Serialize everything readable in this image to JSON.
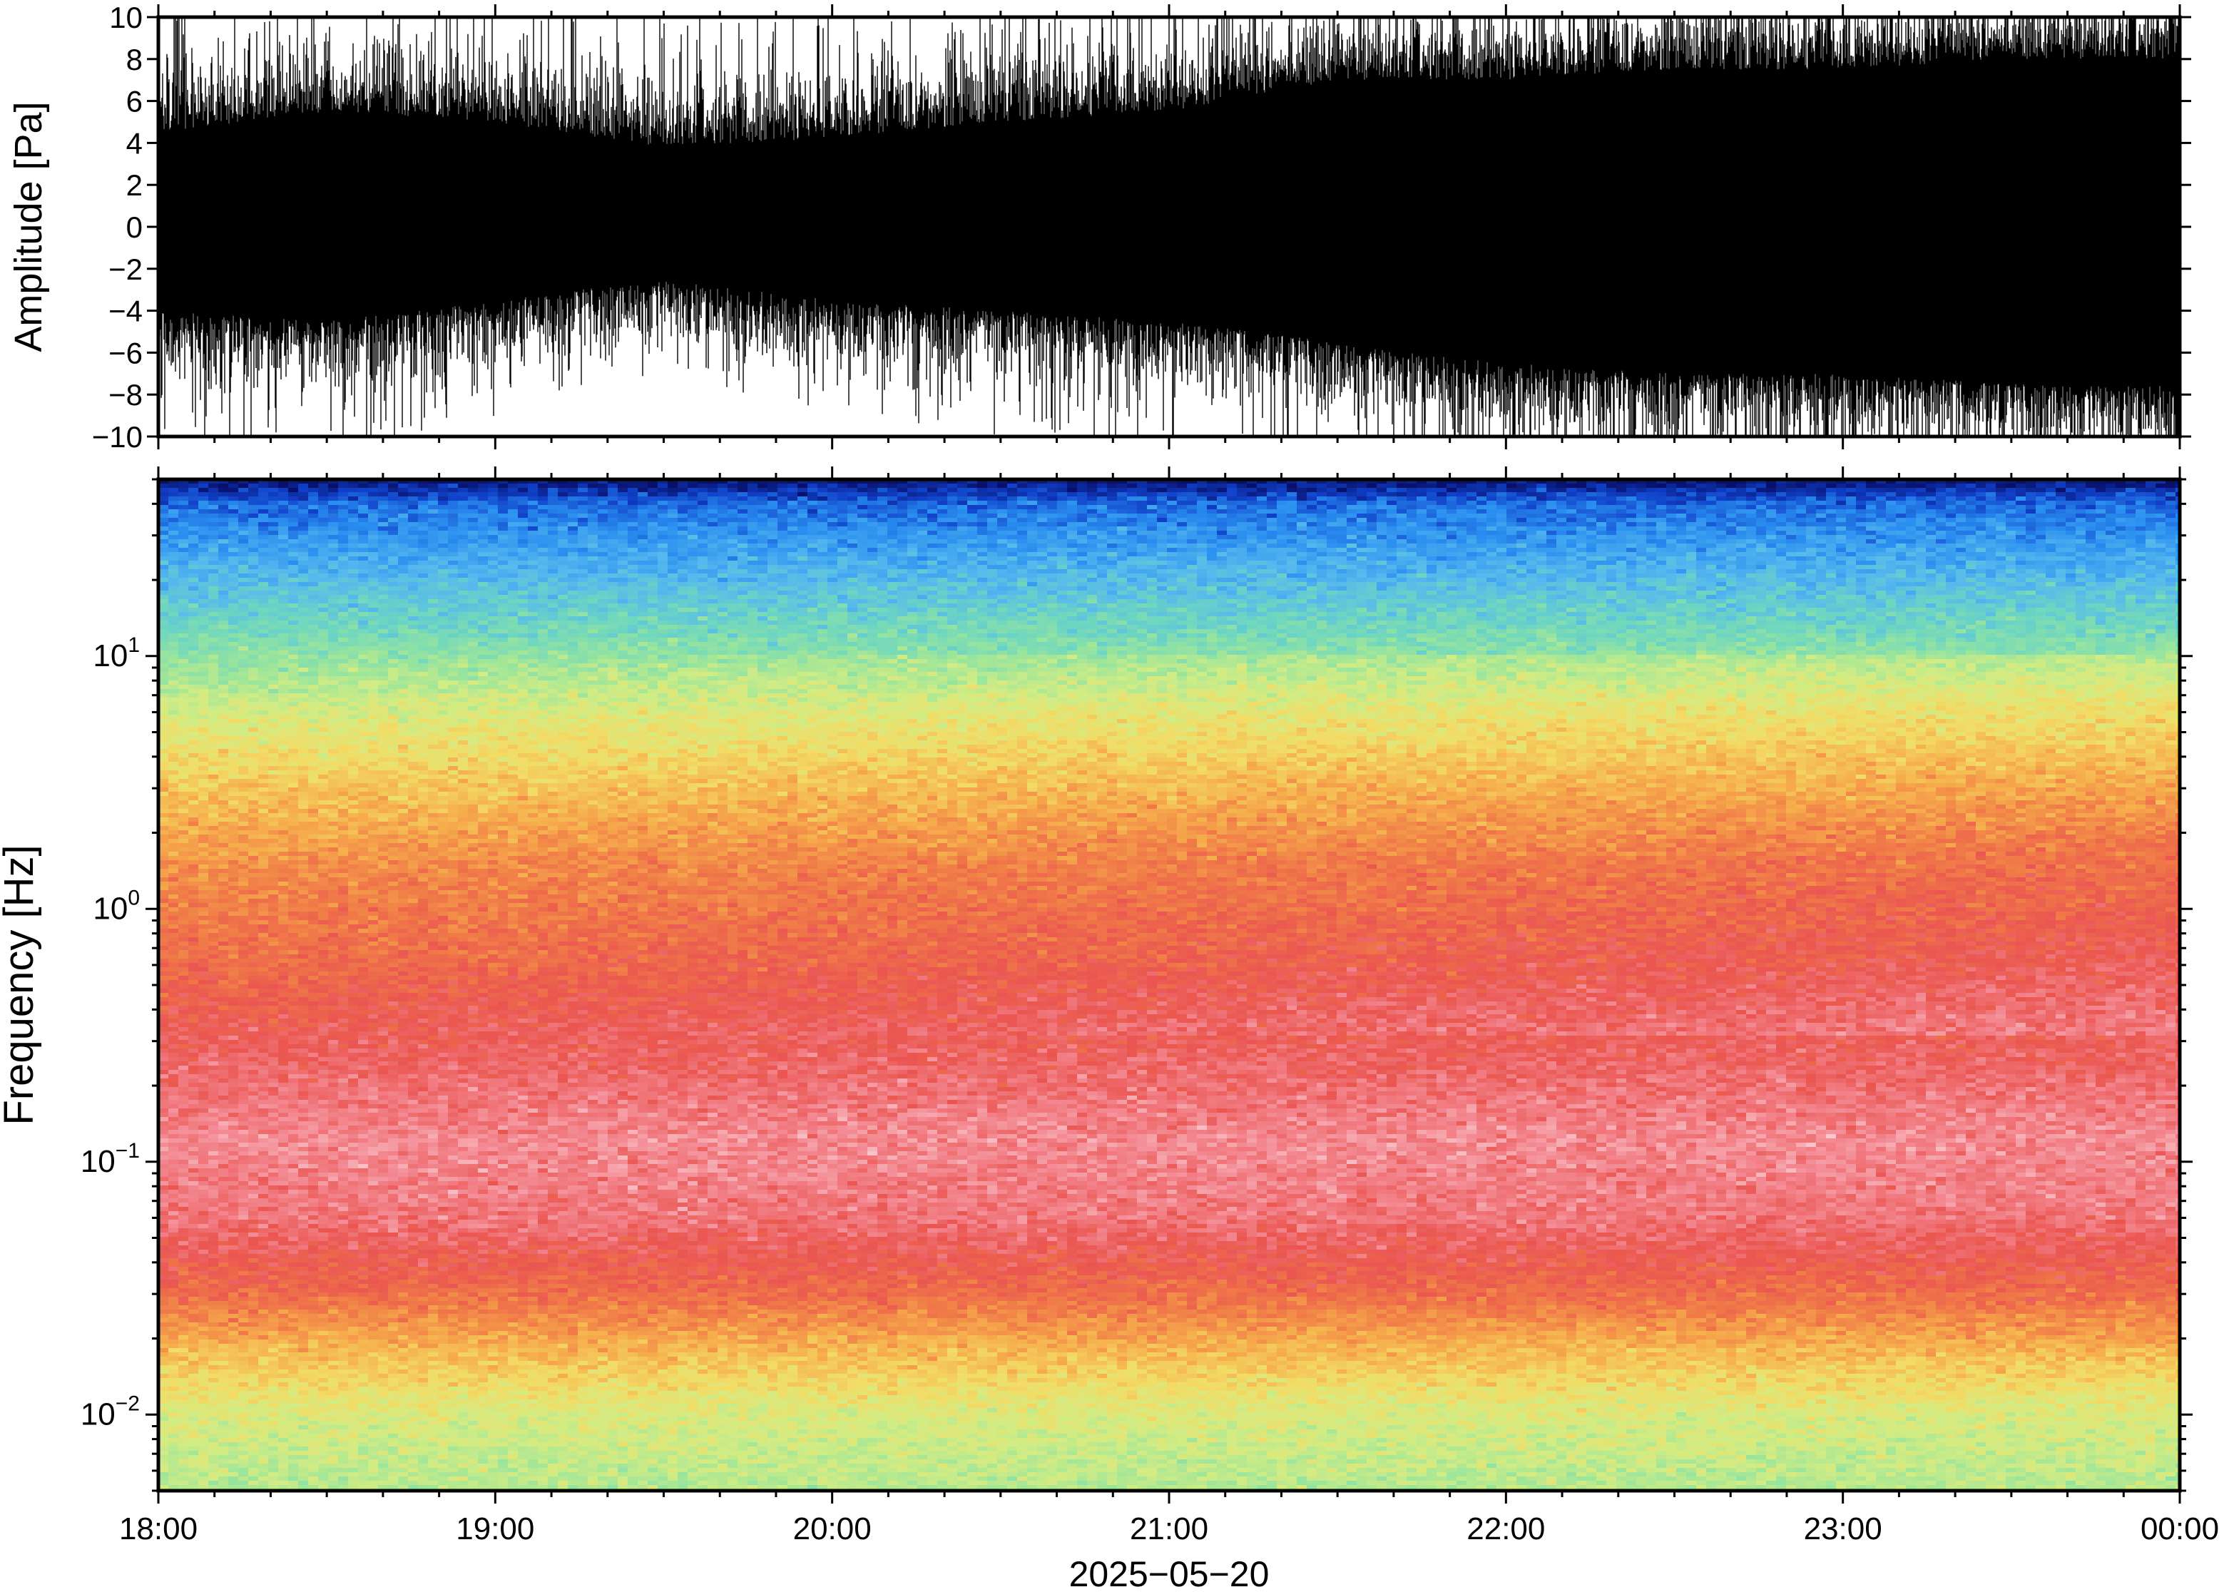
{
  "chart_data": [
    {
      "type": "line",
      "panel": "waveform",
      "ylabel": "Amplitude [Pa]",
      "ylim": [
        -10,
        10
      ],
      "yticks": [
        -10,
        -8,
        -6,
        -4,
        -2,
        0,
        2,
        4,
        6,
        8,
        10
      ],
      "ytick_labels": [
        "−10",
        "−8",
        "−6",
        "−4",
        "−2",
        "0",
        "2",
        "4",
        "6",
        "8",
        "10"
      ],
      "x": [
        "18:00",
        "18:30",
        "19:00",
        "19:30",
        "20:00",
        "20:30",
        "21:00",
        "21:30",
        "22:00",
        "22:30",
        "23:00",
        "23:30",
        "00:00"
      ],
      "envelope": {
        "upper": [
          4.5,
          5.5,
          5,
          3.8,
          4.2,
          5,
          5.5,
          7,
          7,
          7.5,
          7.5,
          8,
          8
        ],
        "lower": [
          -4,
          -4.5,
          -3.5,
          -2.5,
          -3.5,
          -4,
          -4.5,
          -5.5,
          -6.5,
          -7,
          -7,
          -7.5,
          -7.5
        ],
        "peak": [
          9.5,
          10,
          10,
          9,
          9,
          10,
          10,
          10,
          10,
          10,
          10,
          10,
          10
        ]
      },
      "grid": false
    },
    {
      "type": "heatmap",
      "panel": "spectrogram",
      "ylabel": "Frequency [Hz]",
      "yscale": "log",
      "ylim": [
        0.005,
        50
      ],
      "yticks": [
        0.01,
        0.1,
        1,
        10
      ],
      "ytick_labels": [
        {
          "base": "10",
          "exp": "−2"
        },
        {
          "base": "10",
          "exp": "−1"
        },
        {
          "base": "10",
          "exp": "0"
        },
        {
          "base": "10",
          "exp": "1"
        }
      ],
      "xlabel": "2025−05−20",
      "xlim": [
        "18:00",
        "00:00"
      ],
      "xtick_labels": [
        "18:00",
        "19:00",
        "20:00",
        "21:00",
        "22:00",
        "23:00",
        "00:00"
      ],
      "colormap": [
        "#08106b",
        "#1040c8",
        "#2a8ef0",
        "#55b8ee",
        "#6ed6c0",
        "#9ae59c",
        "#d2ec84",
        "#f2dc66",
        "#f6ad4c",
        "#f07b48",
        "#ea5550",
        "#f38790",
        "#fac8cd",
        "#fff2f3"
      ],
      "bands": [
        {
          "freq": 50,
          "level": 0
        },
        {
          "freq": 40,
          "level": 0.12
        },
        {
          "freq": 25,
          "level": 0.2
        },
        {
          "freq": 12,
          "level": 0.33
        },
        {
          "freq": 6,
          "level": 0.47
        },
        {
          "freq": 3,
          "level": 0.57
        },
        {
          "freq": 1.5,
          "level": 0.66
        },
        {
          "freq": 0.6,
          "level": 0.72
        },
        {
          "freq": 0.3,
          "level": 0.78
        },
        {
          "freq": 0.12,
          "level": 0.85
        },
        {
          "freq": 0.06,
          "level": 0.82
        },
        {
          "freq": 0.03,
          "level": 0.72
        },
        {
          "freq": 0.018,
          "level": 0.6
        },
        {
          "freq": 0.01,
          "level": 0.48
        },
        {
          "freq": 0.005,
          "level": 0.42
        }
      ],
      "grid": false
    }
  ]
}
